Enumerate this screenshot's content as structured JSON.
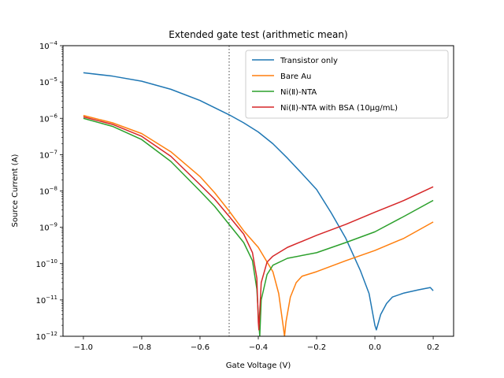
{
  "chart_data": {
    "type": "line",
    "title": "Extended gate test (arithmetic mean)",
    "xlabel": "Gate Voltage (V)",
    "ylabel": "Source Current (A)",
    "xlim": [
      -1.07,
      0.27
    ],
    "ylim": [
      1e-12,
      0.0001
    ],
    "yscale": "log",
    "x_ticks": [
      -1.0,
      -0.8,
      -0.6,
      -0.4,
      -0.2,
      0.0,
      0.2
    ],
    "x_tick_labels": [
      "−1.0",
      "−0.8",
      "−0.6",
      "−0.4",
      "−0.2",
      "0.0",
      "0.2"
    ],
    "y_tick_exponents": [
      -12,
      -11,
      -10,
      -9,
      -8,
      -7,
      -6,
      -5,
      -4
    ],
    "y_tick_base": "10",
    "grid": false,
    "legend_position": "top-right",
    "reference_line": {
      "x": -0.5,
      "style": "dotted",
      "color": "#808080"
    },
    "series": [
      {
        "name": "Transistor only",
        "color": "#1f77b4",
        "points": [
          [
            -1.0,
            1.8e-05
          ],
          [
            -0.9,
            1.45e-05
          ],
          [
            -0.8,
            1.05e-05
          ],
          [
            -0.7,
            6.3e-06
          ],
          [
            -0.6,
            3.1e-06
          ],
          [
            -0.5,
            1.25e-06
          ],
          [
            -0.45,
            7.5e-07
          ],
          [
            -0.4,
            4.2e-07
          ],
          [
            -0.35,
            2e-07
          ],
          [
            -0.3,
            8e-08
          ],
          [
            -0.25,
            3e-08
          ],
          [
            -0.2,
            1.1e-08
          ],
          [
            -0.15,
            2.5e-09
          ],
          [
            -0.1,
            5e-10
          ],
          [
            -0.05,
            6.5e-11
          ],
          [
            -0.02,
            1.5e-11
          ],
          [
            0.0,
            2e-12
          ],
          [
            0.005,
            1.5e-12
          ],
          [
            0.02,
            4e-12
          ],
          [
            0.04,
            8e-12
          ],
          [
            0.06,
            1.2e-11
          ],
          [
            0.1,
            1.55e-11
          ],
          [
            0.15,
            1.9e-11
          ],
          [
            0.19,
            2.2e-11
          ],
          [
            0.2,
            1.8e-11
          ]
        ]
      },
      {
        "name": "Bare Au",
        "color": "#ff7f0e",
        "points": [
          [
            -1.0,
            1.2e-06
          ],
          [
            -0.9,
            7.5e-07
          ],
          [
            -0.8,
            3.8e-07
          ],
          [
            -0.7,
            1.2e-07
          ],
          [
            -0.6,
            2.5e-08
          ],
          [
            -0.55,
            9e-09
          ],
          [
            -0.5,
            2.8e-09
          ],
          [
            -0.45,
            8e-10
          ],
          [
            -0.4,
            2.8e-10
          ],
          [
            -0.35,
            6e-11
          ],
          [
            -0.33,
            1.5e-11
          ],
          [
            -0.315,
            2e-12
          ],
          [
            -0.31,
            1e-12
          ],
          [
            -0.305,
            2.5e-12
          ],
          [
            -0.29,
            1.2e-11
          ],
          [
            -0.27,
            3e-11
          ],
          [
            -0.25,
            4.5e-11
          ],
          [
            -0.2,
            6e-11
          ],
          [
            -0.1,
            1.2e-10
          ],
          [
            0.0,
            2.3e-10
          ],
          [
            0.1,
            5e-10
          ],
          [
            0.2,
            1.4e-09
          ]
        ]
      },
      {
        "name": "Ni(Ⅱ)-NTA",
        "color": "#2ca02c",
        "points": [
          [
            -1.0,
            1e-06
          ],
          [
            -0.9,
            6e-07
          ],
          [
            -0.8,
            2.6e-07
          ],
          [
            -0.7,
            6.5e-08
          ],
          [
            -0.6,
            1e-08
          ],
          [
            -0.55,
            3.8e-09
          ],
          [
            -0.5,
            1.2e-09
          ],
          [
            -0.45,
            3.8e-10
          ],
          [
            -0.42,
            1.2e-10
          ],
          [
            -0.405,
            2e-11
          ],
          [
            -0.4,
            4e-12
          ],
          [
            -0.395,
            1e-12
          ],
          [
            -0.39,
            1e-11
          ],
          [
            -0.37,
            5e-11
          ],
          [
            -0.35,
            9e-11
          ],
          [
            -0.3,
            1.4e-10
          ],
          [
            -0.2,
            2e-10
          ],
          [
            -0.1,
            3.8e-10
          ],
          [
            0.0,
            7.5e-10
          ],
          [
            0.1,
            2e-09
          ],
          [
            0.2,
            5.5e-09
          ]
        ]
      },
      {
        "name": "Ni(Ⅱ)-NTA with BSA (10µg/mL)",
        "color": "#d62728",
        "points": [
          [
            -1.0,
            1.1e-06
          ],
          [
            -0.9,
            6.8e-07
          ],
          [
            -0.8,
            3.2e-07
          ],
          [
            -0.7,
            9e-08
          ],
          [
            -0.6,
            1.5e-08
          ],
          [
            -0.55,
            6e-09
          ],
          [
            -0.5,
            2e-09
          ],
          [
            -0.45,
            6.5e-10
          ],
          [
            -0.42,
            2e-10
          ],
          [
            -0.405,
            4e-11
          ],
          [
            -0.4,
            2.5e-12
          ],
          [
            -0.398,
            1.5e-12
          ],
          [
            -0.39,
            3e-11
          ],
          [
            -0.37,
            1.1e-10
          ],
          [
            -0.35,
            1.6e-10
          ],
          [
            -0.3,
            2.8e-10
          ],
          [
            -0.2,
            6e-10
          ],
          [
            -0.1,
            1.2e-09
          ],
          [
            0.0,
            2.6e-09
          ],
          [
            0.1,
            5.5e-09
          ],
          [
            0.2,
            1.3e-08
          ]
        ]
      }
    ]
  }
}
